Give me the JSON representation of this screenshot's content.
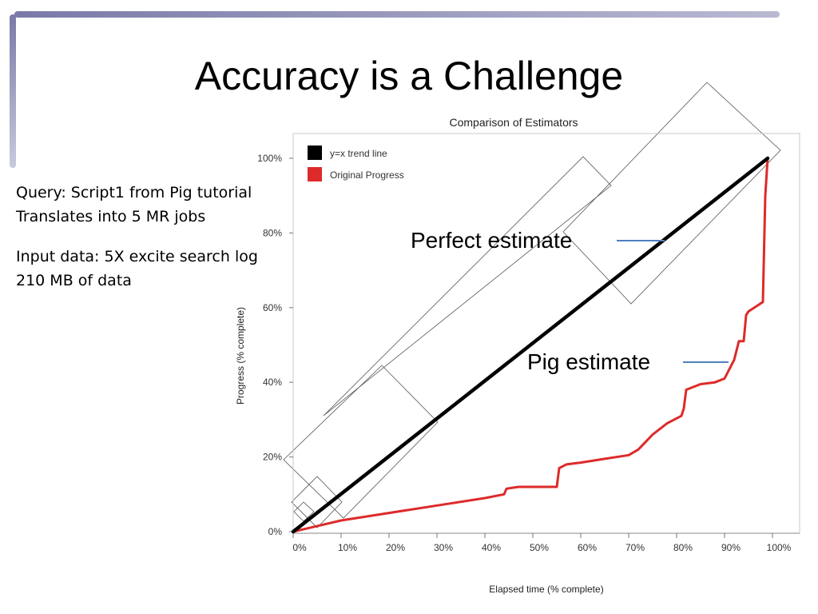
{
  "slide": {
    "title": "Accuracy is a Challenge",
    "notes": [
      "Query: Script1 from Pig tutorial",
      "Translates into 5 MR jobs",
      "Input data: 5X excite search log",
      "210 MB of data"
    ],
    "annotations": {
      "perfect": "Perfect estimate",
      "pig": "Pig estimate"
    }
  },
  "chart_data": {
    "type": "line",
    "title": "Comparison of Estimators",
    "xlabel": "Elapsed time (% complete)",
    "ylabel": "Progress (% complete)",
    "xlim": [
      0,
      100
    ],
    "ylim": [
      0,
      100
    ],
    "x_ticks": [
      "0%",
      "10%",
      "20%",
      "30%",
      "40%",
      "50%",
      "60%",
      "70%",
      "80%",
      "90%",
      "100%"
    ],
    "y_ticks": [
      "0%",
      "20%",
      "40%",
      "60%",
      "80%",
      "100%"
    ],
    "grid": false,
    "legend_position": "top-left",
    "series": [
      {
        "name": "y=x trend line",
        "color": "#000000",
        "x": [
          0,
          99
        ],
        "y": [
          0,
          100
        ]
      },
      {
        "name": "Original Progress",
        "color": "#dd2a2a",
        "x": [
          0,
          10,
          20,
          30,
          40,
          44,
          44.5,
          47,
          50,
          55,
          55.5,
          57,
          60,
          65,
          70,
          72,
          75,
          78,
          81,
          81.5,
          82,
          85,
          88,
          90,
          92,
          93,
          94,
          94.5,
          95,
          98,
          98.5,
          99
        ],
        "y": [
          0,
          3,
          5,
          7,
          9,
          10,
          11.5,
          12,
          12,
          12,
          17,
          18,
          18.5,
          19.5,
          20.5,
          22,
          26,
          29,
          31,
          33,
          38,
          39.5,
          40,
          41,
          46,
          51,
          51,
          58,
          59,
          61.5,
          90,
          100
        ]
      }
    ]
  }
}
